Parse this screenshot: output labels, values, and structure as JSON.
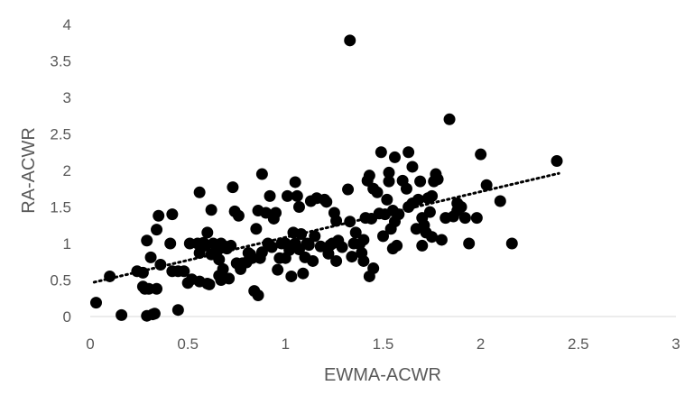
{
  "chart_data": {
    "type": "scatter",
    "title": "",
    "xlabel": "EWMA-ACWR",
    "ylabel": "RA-ACWR",
    "xlim": [
      0,
      3
    ],
    "ylim": [
      0,
      4
    ],
    "x_ticks": [
      0,
      0.5,
      1,
      1.5,
      2,
      2.5,
      3
    ],
    "y_ticks": [
      0,
      0.5,
      1,
      1.5,
      2,
      2.5,
      3,
      3.5,
      4
    ],
    "x_tick_labels": [
      "0",
      "0.5",
      "1",
      "1.5",
      "2",
      "2.5",
      "3"
    ],
    "y_tick_labels": [
      "0",
      "0.5",
      "1",
      "1.5",
      "2",
      "2.5",
      "3",
      "3.5",
      "4"
    ],
    "grid": false,
    "legend": "none",
    "marker_color": "#000000",
    "trendline": {
      "type": "linear",
      "style": "dotted",
      "x": [
        0.02,
        2.4
      ],
      "y": [
        0.47,
        1.96
      ]
    },
    "points": [
      [
        0.03,
        0.19
      ],
      [
        0.1,
        0.55
      ],
      [
        0.16,
        0.02
      ],
      [
        0.24,
        0.62
      ],
      [
        0.27,
        0.6
      ],
      [
        0.27,
        0.41
      ],
      [
        0.28,
        0.38
      ],
      [
        0.29,
        1.04
      ],
      [
        0.29,
        0.01
      ],
      [
        0.3,
        0.38
      ],
      [
        0.31,
        0.81
      ],
      [
        0.32,
        0.03
      ],
      [
        0.33,
        0.04
      ],
      [
        0.34,
        0.38
      ],
      [
        0.34,
        1.19
      ],
      [
        0.35,
        1.38
      ],
      [
        0.36,
        0.71
      ],
      [
        0.41,
        1.0
      ],
      [
        0.42,
        0.62
      ],
      [
        0.42,
        1.4
      ],
      [
        0.45,
        0.09
      ],
      [
        0.45,
        0.62
      ],
      [
        0.48,
        0.62
      ],
      [
        0.5,
        0.46
      ],
      [
        0.51,
        1.0
      ],
      [
        0.52,
        0.51
      ],
      [
        0.55,
        1.0
      ],
      [
        0.56,
        0.87
      ],
      [
        0.56,
        0.48
      ],
      [
        0.56,
        1.7
      ],
      [
        0.58,
        1.01
      ],
      [
        0.59,
        0.97
      ],
      [
        0.6,
        0.45
      ],
      [
        0.6,
        1.15
      ],
      [
        0.61,
        0.44
      ],
      [
        0.62,
        0.85
      ],
      [
        0.62,
        1.46
      ],
      [
        0.63,
        1.0
      ],
      [
        0.65,
        0.9
      ],
      [
        0.66,
        0.56
      ],
      [
        0.66,
        0.78
      ],
      [
        0.67,
        1.0
      ],
      [
        0.67,
        0.5
      ],
      [
        0.68,
        0.65
      ],
      [
        0.69,
        0.96
      ],
      [
        0.7,
        0.93
      ],
      [
        0.71,
        0.52
      ],
      [
        0.72,
        0.97
      ],
      [
        0.73,
        1.77
      ],
      [
        0.74,
        1.44
      ],
      [
        0.75,
        0.73
      ],
      [
        0.76,
        1.38
      ],
      [
        0.77,
        0.65
      ],
      [
        0.78,
        0.73
      ],
      [
        0.8,
        0.74
      ],
      [
        0.81,
        0.87
      ],
      [
        0.82,
        0.85
      ],
      [
        0.83,
        0.8
      ],
      [
        0.84,
        0.35
      ],
      [
        0.85,
        1.2
      ],
      [
        0.86,
        1.45
      ],
      [
        0.86,
        0.29
      ],
      [
        0.87,
        0.8
      ],
      [
        0.88,
        0.88
      ],
      [
        0.88,
        1.95
      ],
      [
        0.9,
        1.42
      ],
      [
        0.91,
        1.0
      ],
      [
        0.92,
        1.65
      ],
      [
        0.93,
        0.95
      ],
      [
        0.94,
        1.34
      ],
      [
        0.95,
        1.42
      ],
      [
        0.96,
        0.64
      ],
      [
        0.97,
        0.8
      ],
      [
        0.98,
        1.0
      ],
      [
        1.0,
        1.0
      ],
      [
        1.0,
        0.8
      ],
      [
        1.01,
        1.65
      ],
      [
        1.02,
        0.91
      ],
      [
        1.03,
        0.55
      ],
      [
        1.04,
        1.15
      ],
      [
        1.05,
        1.84
      ],
      [
        1.05,
        1.0
      ],
      [
        1.06,
        1.65
      ],
      [
        1.07,
        1.5
      ],
      [
        1.07,
        0.92
      ],
      [
        1.08,
        1.13
      ],
      [
        1.09,
        0.59
      ],
      [
        1.1,
        0.81
      ],
      [
        1.11,
        1.0
      ],
      [
        1.12,
        0.98
      ],
      [
        1.13,
        1.58
      ],
      [
        1.14,
        0.76
      ],
      [
        1.15,
        1.1
      ],
      [
        1.16,
        1.62
      ],
      [
        1.18,
        0.96
      ],
      [
        1.2,
        1.6
      ],
      [
        1.21,
        1.57
      ],
      [
        1.22,
        0.86
      ],
      [
        1.23,
        0.98
      ],
      [
        1.24,
        1.0
      ],
      [
        1.25,
        1.42
      ],
      [
        1.26,
        1.31
      ],
      [
        1.26,
        0.76
      ],
      [
        1.27,
        1.04
      ],
      [
        1.29,
        0.95
      ],
      [
        1.32,
        1.74
      ],
      [
        1.33,
        1.3
      ],
      [
        1.33,
        3.78
      ],
      [
        1.34,
        0.82
      ],
      [
        1.35,
        1.0
      ],
      [
        1.36,
        1.15
      ],
      [
        1.38,
        0.99
      ],
      [
        1.39,
        0.87
      ],
      [
        1.4,
        0.76
      ],
      [
        1.4,
        1.05
      ],
      [
        1.41,
        1.35
      ],
      [
        1.42,
        1.86
      ],
      [
        1.43,
        1.93
      ],
      [
        1.43,
        0.55
      ],
      [
        1.44,
        1.34
      ],
      [
        1.45,
        1.75
      ],
      [
        1.45,
        0.66
      ],
      [
        1.47,
        1.7
      ],
      [
        1.48,
        1.41
      ],
      [
        1.49,
        2.25
      ],
      [
        1.5,
        1.1
      ],
      [
        1.51,
        1.4
      ],
      [
        1.52,
        1.6
      ],
      [
        1.53,
        1.85
      ],
      [
        1.53,
        1.97
      ],
      [
        1.54,
        1.2
      ],
      [
        1.55,
        0.93
      ],
      [
        1.55,
        1.45
      ],
      [
        1.56,
        2.18
      ],
      [
        1.56,
        1.3
      ],
      [
        1.57,
        0.97
      ],
      [
        1.58,
        1.4
      ],
      [
        1.6,
        1.86
      ],
      [
        1.62,
        1.75
      ],
      [
        1.63,
        2.25
      ],
      [
        1.63,
        1.5
      ],
      [
        1.65,
        2.05
      ],
      [
        1.65,
        1.55
      ],
      [
        1.67,
        1.2
      ],
      [
        1.68,
        1.6
      ],
      [
        1.69,
        1.85
      ],
      [
        1.7,
        0.97
      ],
      [
        1.7,
        1.35
      ],
      [
        1.71,
        1.25
      ],
      [
        1.72,
        1.15
      ],
      [
        1.73,
        1.62
      ],
      [
        1.74,
        1.43
      ],
      [
        1.75,
        1.65
      ],
      [
        1.75,
        1.09
      ],
      [
        1.76,
        1.85
      ],
      [
        1.77,
        1.95
      ],
      [
        1.78,
        1.88
      ],
      [
        1.8,
        1.05
      ],
      [
        1.82,
        1.35
      ],
      [
        1.84,
        2.7
      ],
      [
        1.86,
        1.37
      ],
      [
        1.88,
        1.45
      ],
      [
        1.88,
        1.55
      ],
      [
        1.9,
        1.5
      ],
      [
        1.92,
        1.35
      ],
      [
        1.94,
        1.0
      ],
      [
        1.98,
        1.35
      ],
      [
        2.0,
        2.22
      ],
      [
        2.03,
        1.8
      ],
      [
        2.1,
        1.58
      ],
      [
        2.16,
        1.0
      ],
      [
        2.39,
        2.13
      ]
    ]
  }
}
